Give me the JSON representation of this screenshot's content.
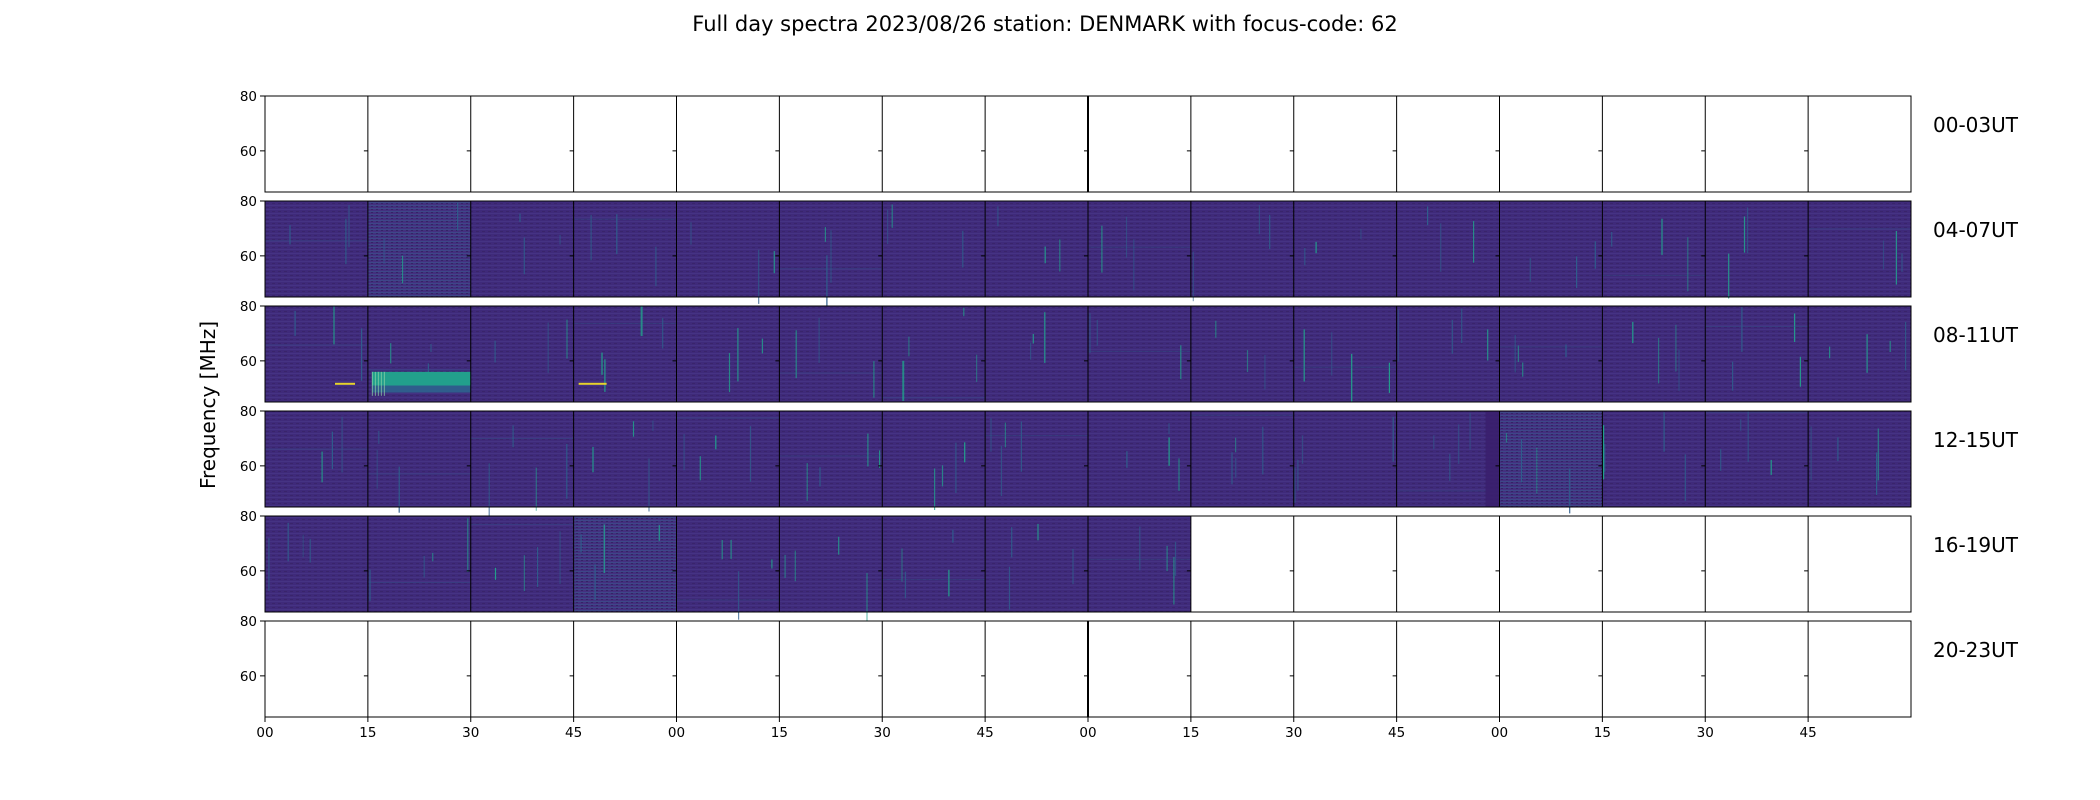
{
  "chart_data": {
    "type": "heatmap",
    "title": "Full day spectra 2023/08/26 station: DENMARK with focus-code: 62",
    "ylabel": "Frequency [MHz]",
    "ylim": [
      45,
      80
    ],
    "y_ticks": [
      60,
      80
    ],
    "x_tick_labels": [
      "00",
      "15",
      "30",
      "45",
      "00",
      "15",
      "30",
      "45",
      "00",
      "15",
      "30",
      "45",
      "00",
      "15",
      "30",
      "45"
    ],
    "panels_per_row": 16,
    "rows": [
      {
        "label": "00-03UT",
        "panels_with_data": 0
      },
      {
        "label": "04-07UT",
        "panels_with_data": 16
      },
      {
        "label": "08-11UT",
        "panels_with_data": 16
      },
      {
        "label": "12-15UT",
        "panels_with_data": 16
      },
      {
        "label": "16-19UT",
        "panels_with_data": 9
      },
      {
        "label": "20-23UT",
        "panels_with_data": 0
      }
    ],
    "colors": {
      "background": "#3f2a7a",
      "band": "#2f5d8c",
      "burst": "#22a08c",
      "hot": "#e6d22c",
      "frame": "#000000"
    }
  }
}
